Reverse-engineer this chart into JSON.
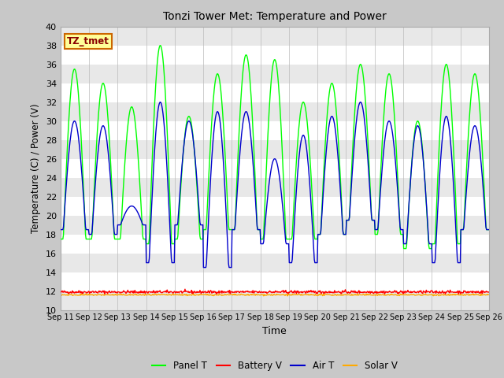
{
  "title": "Tonzi Tower Met: Temperature and Power",
  "xlabel": "Time",
  "ylabel": "Temperature (C) / Power (V)",
  "ylim": [
    10,
    40
  ],
  "yticks": [
    10,
    12,
    14,
    16,
    18,
    20,
    22,
    24,
    26,
    28,
    30,
    32,
    34,
    36,
    38,
    40
  ],
  "x_labels": [
    "Sep 11",
    "Sep 12",
    "Sep 13",
    "Sep 14",
    "Sep 15",
    "Sep 16",
    "Sep 17",
    "Sep 18",
    "Sep 19",
    "Sep 20",
    "Sep 21",
    "Sep 22",
    "Sep 23",
    "Sep 24",
    "Sep 25",
    "Sep 26"
  ],
  "annotation_text": "TZ_tmet",
  "annotation_bg": "#ffff99",
  "annotation_border": "#cc6600",
  "colors": {
    "panel_t": "#00ff00",
    "battery_v": "#ff0000",
    "air_t": "#0000cc",
    "solar_v": "#ffaa00"
  },
  "fig_bg": "#c8c8c8",
  "band_light": "#e8e8e8",
  "band_dark": "#d8d8d8",
  "n_days": 15,
  "panel_t_peaks": [
    35.5,
    34.0,
    31.5,
    38.0,
    30.5,
    35.0,
    37.0,
    36.5,
    32.0,
    34.0,
    36.0,
    35.0,
    30.0,
    36.0,
    35.0
  ],
  "panel_t_troughs": [
    17.5,
    17.5,
    17.5,
    17.0,
    17.5,
    18.5,
    18.5,
    17.5,
    17.5,
    18.0,
    19.5,
    18.0,
    16.5,
    17.0,
    18.5
  ],
  "air_t_peaks": [
    30.0,
    29.5,
    21.0,
    32.0,
    30.0,
    31.0,
    31.0,
    26.0,
    28.5,
    30.5,
    32.0,
    30.0,
    29.5,
    30.5,
    29.5
  ],
  "air_t_troughs": [
    18.5,
    18.0,
    19.0,
    15.0,
    19.0,
    14.5,
    18.5,
    17.0,
    15.0,
    18.0,
    19.5,
    18.5,
    17.0,
    15.0,
    18.5
  ],
  "battery_v_base": 11.9,
  "solar_v_base": 11.6
}
